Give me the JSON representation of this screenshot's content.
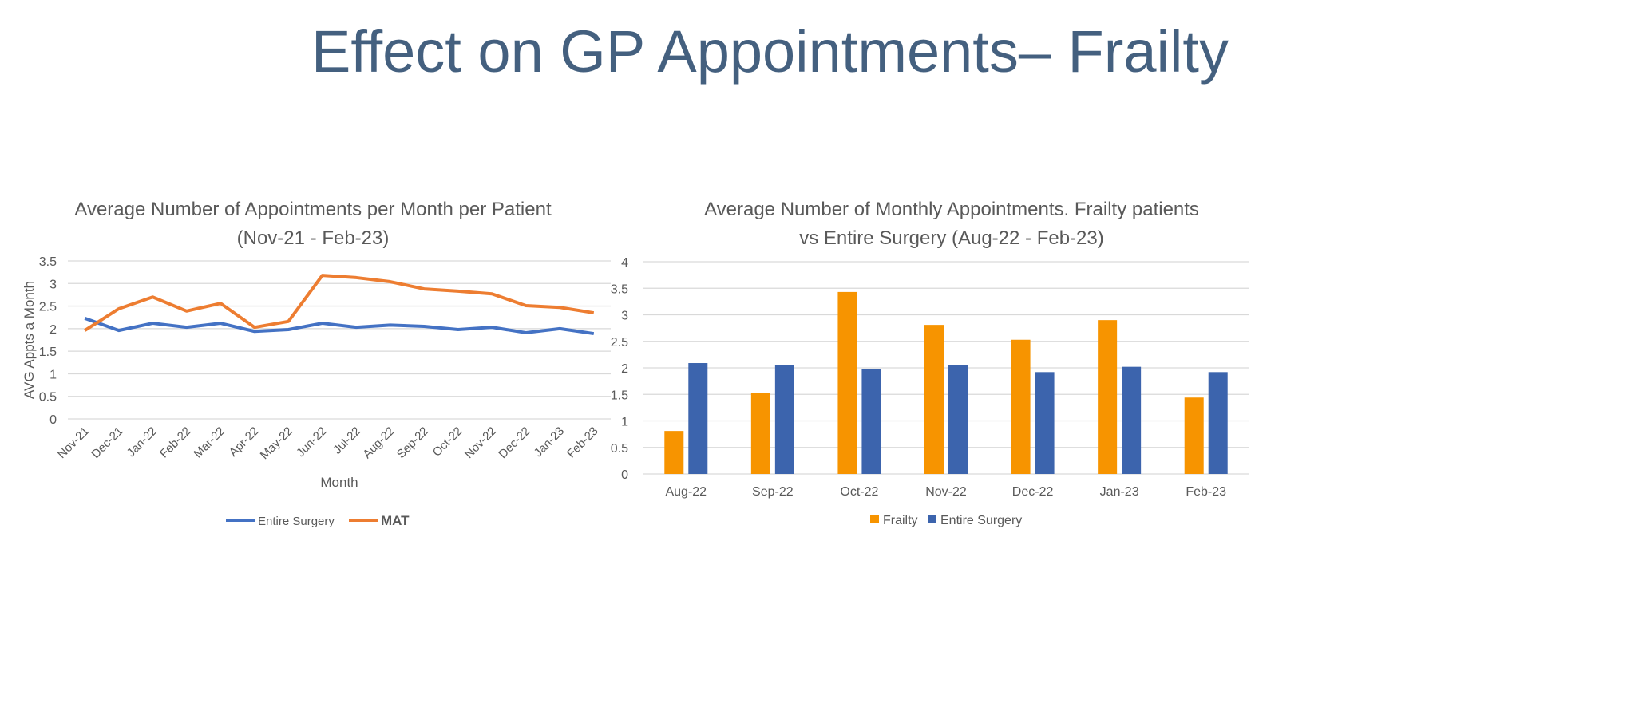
{
  "title": "Effect on GP Appointments– Frailty",
  "chart_data": [
    {
      "type": "line",
      "title": [
        "Average Number of Appointments per Month per Patient",
        "(Nov-21 - Feb-23)"
      ],
      "xlabel": "Month",
      "ylabel": "AVG Appts a Month",
      "ylim": [
        0,
        3.5
      ],
      "yticks": [
        "0",
        "0.5",
        "1",
        "1.5",
        "2",
        "2.5",
        "3",
        "3.5"
      ],
      "grid": true,
      "legend_position": "bottom",
      "categories": [
        "Nov-21",
        "Dec-21",
        "Jan-22",
        "Feb-22",
        "Mar-22",
        "Apr-22",
        "May-22",
        "Jun-22",
        "Jul-22",
        "Aug-22",
        "Sep-22",
        "Oct-22",
        "Nov-22",
        "Dec-22",
        "Jan-23",
        "Feb-23"
      ],
      "series": [
        {
          "name": "Entire Surgery",
          "color": "#4472C4",
          "values": [
            2.23,
            1.96,
            2.12,
            2.03,
            2.12,
            1.94,
            1.98,
            2.12,
            2.03,
            2.08,
            2.05,
            1.98,
            2.03,
            1.91,
            2.0,
            1.89
          ]
        },
        {
          "name": "MAT",
          "color": "#ED7D31",
          "values": [
            1.96,
            2.44,
            2.7,
            2.39,
            2.56,
            2.03,
            2.16,
            3.18,
            3.13,
            3.04,
            2.88,
            2.83,
            2.77,
            2.51,
            2.47,
            2.35
          ]
        }
      ]
    },
    {
      "type": "bar",
      "title": [
        "Average Number of Monthly Appointments. Frailty patients",
        "vs Entire Surgery (Aug-22 - Feb-23)"
      ],
      "ylim": [
        0,
        4
      ],
      "yticks": [
        "0",
        "0.5",
        "1",
        "1.5",
        "2",
        "2.5",
        "3",
        "3.5",
        "4"
      ],
      "grid": true,
      "legend_position": "bottom",
      "categories": [
        "Aug-22",
        "Sep-22",
        "Oct-22",
        "Nov-22",
        "Dec-22",
        "Jan-23",
        "Feb-23"
      ],
      "series": [
        {
          "name": "Frailty",
          "color": "#F79400",
          "values": [
            0.81,
            1.53,
            3.43,
            2.81,
            2.53,
            2.9,
            1.44
          ]
        },
        {
          "name": "Entire Surgery",
          "color": "#3C64AD",
          "values": [
            2.09,
            2.06,
            1.98,
            2.05,
            1.92,
            2.02,
            1.92
          ]
        }
      ]
    }
  ]
}
